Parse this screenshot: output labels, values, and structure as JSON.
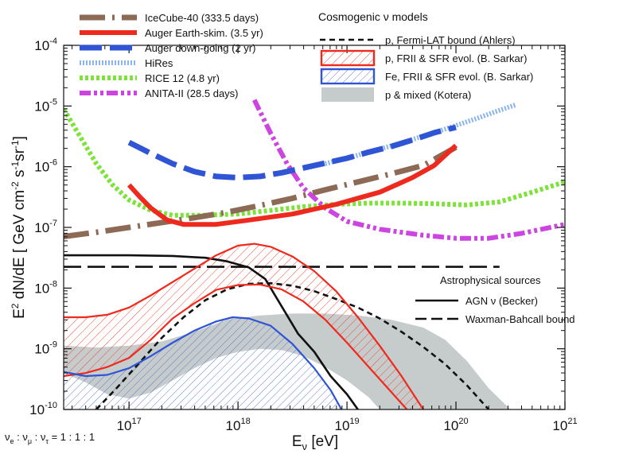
{
  "chart_data": {
    "type": "line",
    "title": "",
    "xlabel": "E_ν [eV]",
    "ylabel": "E² dN/dE  [ GeV cm⁻² s⁻¹ sr⁻¹ ]",
    "xscale": "log",
    "yscale": "log",
    "xlim_log10": [
      16.4,
      21.0
    ],
    "ylim_log10": [
      -10.0,
      -4.0
    ],
    "x_ticks": [
      {
        "exp": 17,
        "base": "10",
        "sup": "17"
      },
      {
        "exp": 18,
        "base": "10",
        "sup": "18"
      },
      {
        "exp": 19,
        "base": "10",
        "sup": "19"
      },
      {
        "exp": 20,
        "base": "10",
        "sup": "20"
      },
      {
        "exp": 21,
        "base": "10",
        "sup": "21"
      }
    ],
    "y_ticks": [
      {
        "exp": -10,
        "base": "10",
        "sup": "-10"
      },
      {
        "exp": -9,
        "base": "10",
        "sup": "-9"
      },
      {
        "exp": -8,
        "base": "10",
        "sup": "-8"
      },
      {
        "exp": -7,
        "base": "10",
        "sup": "-7"
      },
      {
        "exp": -6,
        "base": "10",
        "sup": "-6"
      },
      {
        "exp": -5,
        "base": "10",
        "sup": "-5"
      },
      {
        "exp": -4,
        "base": "10",
        "sup": "-4"
      }
    ],
    "flavor_note": "νe : νμ : ντ = 1 : 1 : 1",
    "legend_left": [
      {
        "id": "icecube",
        "label": "IceCube-40 (333.5 days)"
      },
      {
        "id": "auger_es",
        "label": "Auger Earth-skim. (3.5 yr)"
      },
      {
        "id": "auger_dg",
        "label": "Auger down-going (2 yr)"
      },
      {
        "id": "hires",
        "label": "HiRes"
      },
      {
        "id": "rice",
        "label": "RICE 12 (4.8 yr)"
      },
      {
        "id": "anita",
        "label": "ANITA-II (28.5 days)"
      }
    ],
    "legend_right_title": "Cosmogenic ν models",
    "legend_right": [
      {
        "id": "fermi",
        "label": "p, Fermi-LAT bound (Ahlers)"
      },
      {
        "id": "p_frii",
        "label": "p, FRII & SFR evol. (B. Sarkar)"
      },
      {
        "id": "fe_frii",
        "label": "Fe, FRII & SFR evol. (B. Sarkar)"
      },
      {
        "id": "kotera",
        "label": "p & mixed (Kotera)"
      }
    ],
    "legend_astro_title": "Astrophysical sources",
    "legend_astro": [
      {
        "id": "agn",
        "label": "AGN ν (Becker)"
      },
      {
        "id": "wb",
        "label": "Waxman-Bahcall bound"
      }
    ],
    "series": [
      {
        "id": "icecube",
        "name": "IceCube-40 (333.5 days)",
        "color": "#8c6a55",
        "points": [
          [
            16.4,
            -7.15
          ],
          [
            16.7,
            -7.08
          ],
          [
            17.0,
            -7.0
          ],
          [
            17.3,
            -6.92
          ],
          [
            17.6,
            -6.84
          ],
          [
            17.9,
            -6.75
          ],
          [
            18.2,
            -6.64
          ],
          [
            18.5,
            -6.52
          ],
          [
            18.8,
            -6.38
          ],
          [
            19.1,
            -6.25
          ],
          [
            19.4,
            -6.12
          ],
          [
            19.7,
            -5.98
          ],
          [
            20.0,
            -5.68
          ]
        ]
      },
      {
        "id": "auger_es",
        "name": "Auger Earth-skim. (3.5 yr)",
        "color": "#ee2a1e",
        "points": [
          [
            17.0,
            -6.3
          ],
          [
            17.1,
            -6.5
          ],
          [
            17.2,
            -6.68
          ],
          [
            17.35,
            -6.88
          ],
          [
            17.5,
            -6.95
          ],
          [
            17.8,
            -6.95
          ],
          [
            18.1,
            -6.88
          ],
          [
            18.5,
            -6.78
          ],
          [
            18.9,
            -6.62
          ],
          [
            19.3,
            -6.42
          ],
          [
            19.6,
            -6.18
          ],
          [
            19.8,
            -5.98
          ],
          [
            20.0,
            -5.65
          ]
        ]
      },
      {
        "id": "auger_dg",
        "name": "Auger down-going (2 yr)",
        "color": "#2f55d4",
        "points": [
          [
            17.0,
            -5.6
          ],
          [
            17.2,
            -5.78
          ],
          [
            17.4,
            -5.95
          ],
          [
            17.6,
            -6.08
          ],
          [
            17.8,
            -6.16
          ],
          [
            18.0,
            -6.18
          ],
          [
            18.2,
            -6.16
          ],
          [
            18.4,
            -6.1
          ],
          [
            18.6,
            -6.02
          ],
          [
            18.8,
            -5.94
          ],
          [
            19.0,
            -5.86
          ],
          [
            19.2,
            -5.76
          ],
          [
            19.4,
            -5.67
          ],
          [
            19.6,
            -5.56
          ],
          [
            19.8,
            -5.44
          ],
          [
            20.0,
            -5.35
          ]
        ]
      },
      {
        "id": "hires",
        "name": "HiRes",
        "color": "#8ab4ee",
        "points": [
          [
            18.6,
            -6.03
          ],
          [
            18.8,
            -5.95
          ],
          [
            19.0,
            -5.86
          ],
          [
            19.2,
            -5.76
          ],
          [
            19.4,
            -5.66
          ],
          [
            19.6,
            -5.55
          ],
          [
            19.8,
            -5.44
          ],
          [
            20.0,
            -5.32
          ],
          [
            20.2,
            -5.2
          ],
          [
            20.4,
            -5.07
          ],
          [
            20.55,
            -4.98
          ]
        ]
      },
      {
        "id": "rice",
        "name": "RICE 12 (4.8 yr)",
        "color": "#7de33a",
        "points": [
          [
            16.4,
            -5.05
          ],
          [
            16.55,
            -5.5
          ],
          [
            16.7,
            -5.95
          ],
          [
            16.85,
            -6.3
          ],
          [
            17.0,
            -6.55
          ],
          [
            17.2,
            -6.72
          ],
          [
            17.4,
            -6.8
          ],
          [
            17.7,
            -6.8
          ],
          [
            18.0,
            -6.78
          ],
          [
            18.3,
            -6.72
          ],
          [
            18.6,
            -6.66
          ],
          [
            18.9,
            -6.62
          ],
          [
            19.2,
            -6.6
          ],
          [
            19.5,
            -6.6
          ],
          [
            19.8,
            -6.61
          ],
          [
            20.1,
            -6.63
          ],
          [
            20.4,
            -6.58
          ],
          [
            20.7,
            -6.42
          ],
          [
            21.0,
            -6.25
          ]
        ]
      },
      {
        "id": "anita",
        "name": "ANITA-II (28.5 days)",
        "color": "#cc45e0",
        "points": [
          [
            18.15,
            -4.9
          ],
          [
            18.3,
            -5.45
          ],
          [
            18.45,
            -5.95
          ],
          [
            18.6,
            -6.35
          ],
          [
            18.8,
            -6.68
          ],
          [
            19.0,
            -6.9
          ],
          [
            19.3,
            -7.03
          ],
          [
            19.7,
            -7.13
          ],
          [
            20.0,
            -7.18
          ],
          [
            20.3,
            -7.18
          ],
          [
            20.6,
            -7.1
          ],
          [
            21.0,
            -6.95
          ]
        ]
      },
      {
        "id": "wb",
        "name": "Waxman-Bahcall bound",
        "color": "#111111",
        "points": [
          [
            16.4,
            -7.65
          ],
          [
            20.4,
            -7.65
          ]
        ]
      },
      {
        "id": "agn",
        "name": "AGN ν (Becker)",
        "color": "#111111",
        "points": [
          [
            16.4,
            -7.46
          ],
          [
            17.0,
            -7.46
          ],
          [
            17.4,
            -7.47
          ],
          [
            17.7,
            -7.5
          ],
          [
            17.9,
            -7.56
          ],
          [
            18.1,
            -7.66
          ],
          [
            18.25,
            -7.85
          ],
          [
            18.4,
            -8.3
          ],
          [
            18.55,
            -8.75
          ],
          [
            18.7,
            -9.05
          ],
          [
            18.85,
            -9.45
          ],
          [
            19.0,
            -9.75
          ],
          [
            19.1,
            -10.0
          ]
        ]
      },
      {
        "id": "fermi",
        "name": "p, Fermi-LAT bound (Ahlers)",
        "color": "#111111",
        "points": [
          [
            16.7,
            -10.0
          ],
          [
            16.9,
            -9.62
          ],
          [
            17.1,
            -9.22
          ],
          [
            17.3,
            -8.82
          ],
          [
            17.5,
            -8.48
          ],
          [
            17.7,
            -8.2
          ],
          [
            17.9,
            -8.02
          ],
          [
            18.1,
            -7.93
          ],
          [
            18.3,
            -7.92
          ],
          [
            18.5,
            -7.96
          ],
          [
            18.7,
            -8.05
          ],
          [
            18.9,
            -8.18
          ],
          [
            19.1,
            -8.32
          ],
          [
            19.3,
            -8.5
          ],
          [
            19.5,
            -8.72
          ],
          [
            19.7,
            -8.97
          ],
          [
            19.9,
            -9.25
          ],
          [
            20.1,
            -9.6
          ],
          [
            20.3,
            -10.0
          ]
        ]
      },
      {
        "id": "p_upper",
        "name": "p, FRII & SFR evol. (B. Sarkar) upper",
        "color": "#ee2a1e",
        "points": [
          [
            16.4,
            -8.48
          ],
          [
            16.6,
            -8.48
          ],
          [
            16.8,
            -8.44
          ],
          [
            17.0,
            -8.32
          ],
          [
            17.2,
            -8.12
          ],
          [
            17.4,
            -7.9
          ],
          [
            17.6,
            -7.68
          ],
          [
            17.8,
            -7.46
          ],
          [
            18.0,
            -7.3
          ],
          [
            18.15,
            -7.27
          ],
          [
            18.3,
            -7.32
          ],
          [
            18.5,
            -7.48
          ],
          [
            18.7,
            -7.72
          ],
          [
            18.9,
            -8.05
          ],
          [
            19.1,
            -8.48
          ],
          [
            19.3,
            -8.95
          ],
          [
            19.5,
            -9.45
          ],
          [
            19.7,
            -10.0
          ]
        ]
      },
      {
        "id": "p_lower",
        "name": "p, FRII & SFR evol. (B. Sarkar) lower",
        "color": "#ee2a1e",
        "points": [
          [
            16.4,
            -9.45
          ],
          [
            16.6,
            -9.4
          ],
          [
            16.8,
            -9.3
          ],
          [
            17.0,
            -9.15
          ],
          [
            17.2,
            -8.85
          ],
          [
            17.4,
            -8.5
          ],
          [
            17.6,
            -8.25
          ],
          [
            17.8,
            -8.03
          ],
          [
            18.0,
            -7.95
          ],
          [
            18.2,
            -7.94
          ],
          [
            18.4,
            -8.02
          ],
          [
            18.6,
            -8.22
          ],
          [
            18.8,
            -8.52
          ],
          [
            19.0,
            -8.9
          ],
          [
            19.2,
            -9.3
          ],
          [
            19.4,
            -9.7
          ],
          [
            19.55,
            -10.0
          ]
        ]
      },
      {
        "id": "fe_upper",
        "name": "Fe, FRII & SFR evol. (B. Sarkar) upper",
        "color": "#2f55d4",
        "points": [
          [
            16.4,
            -9.38
          ],
          [
            16.6,
            -9.45
          ],
          [
            16.8,
            -9.43
          ],
          [
            17.0,
            -9.32
          ],
          [
            17.2,
            -9.12
          ],
          [
            17.4,
            -8.9
          ],
          [
            17.6,
            -8.7
          ],
          [
            17.8,
            -8.55
          ],
          [
            17.95,
            -8.48
          ],
          [
            18.1,
            -8.5
          ],
          [
            18.3,
            -8.62
          ],
          [
            18.5,
            -8.92
          ],
          [
            18.7,
            -9.32
          ],
          [
            18.85,
            -9.68
          ],
          [
            18.95,
            -10.0
          ]
        ]
      },
      {
        "id": "fe_lower",
        "name": "Fe, FRII & SFR evol. (B. Sarkar) lower",
        "color": "#2f55d4",
        "points": [
          [
            16.4,
            -10.0
          ],
          [
            18.95,
            -10.0
          ]
        ]
      },
      {
        "id": "kotera_upper",
        "name": "p & mixed (Kotera) upper",
        "color": "#b9c1c1",
        "points": [
          [
            16.4,
            -8.95
          ],
          [
            16.7,
            -8.98
          ],
          [
            17.0,
            -8.95
          ],
          [
            17.3,
            -8.88
          ],
          [
            17.6,
            -8.72
          ],
          [
            17.9,
            -8.52
          ],
          [
            18.2,
            -8.45
          ],
          [
            18.5,
            -8.42
          ],
          [
            18.8,
            -8.42
          ],
          [
            19.1,
            -8.45
          ],
          [
            19.4,
            -8.52
          ],
          [
            19.7,
            -8.65
          ],
          [
            19.9,
            -8.85
          ],
          [
            20.1,
            -9.2
          ],
          [
            20.3,
            -9.65
          ],
          [
            20.5,
            -10.0
          ]
        ]
      },
      {
        "id": "kotera_lower",
        "name": "p & mixed (Kotera) lower",
        "color": "#b9c1c1",
        "points": [
          [
            16.4,
            -9.4
          ],
          [
            16.6,
            -9.55
          ],
          [
            16.8,
            -9.75
          ],
          [
            17.0,
            -9.82
          ],
          [
            17.2,
            -9.72
          ],
          [
            17.4,
            -9.52
          ],
          [
            17.6,
            -9.32
          ],
          [
            17.8,
            -9.15
          ],
          [
            18.0,
            -9.05
          ],
          [
            18.2,
            -9.0
          ],
          [
            18.4,
            -9.02
          ],
          [
            18.6,
            -9.12
          ],
          [
            18.8,
            -9.3
          ],
          [
            19.0,
            -9.52
          ],
          [
            19.2,
            -9.8
          ],
          [
            19.3,
            -10.0
          ]
        ]
      }
    ]
  }
}
